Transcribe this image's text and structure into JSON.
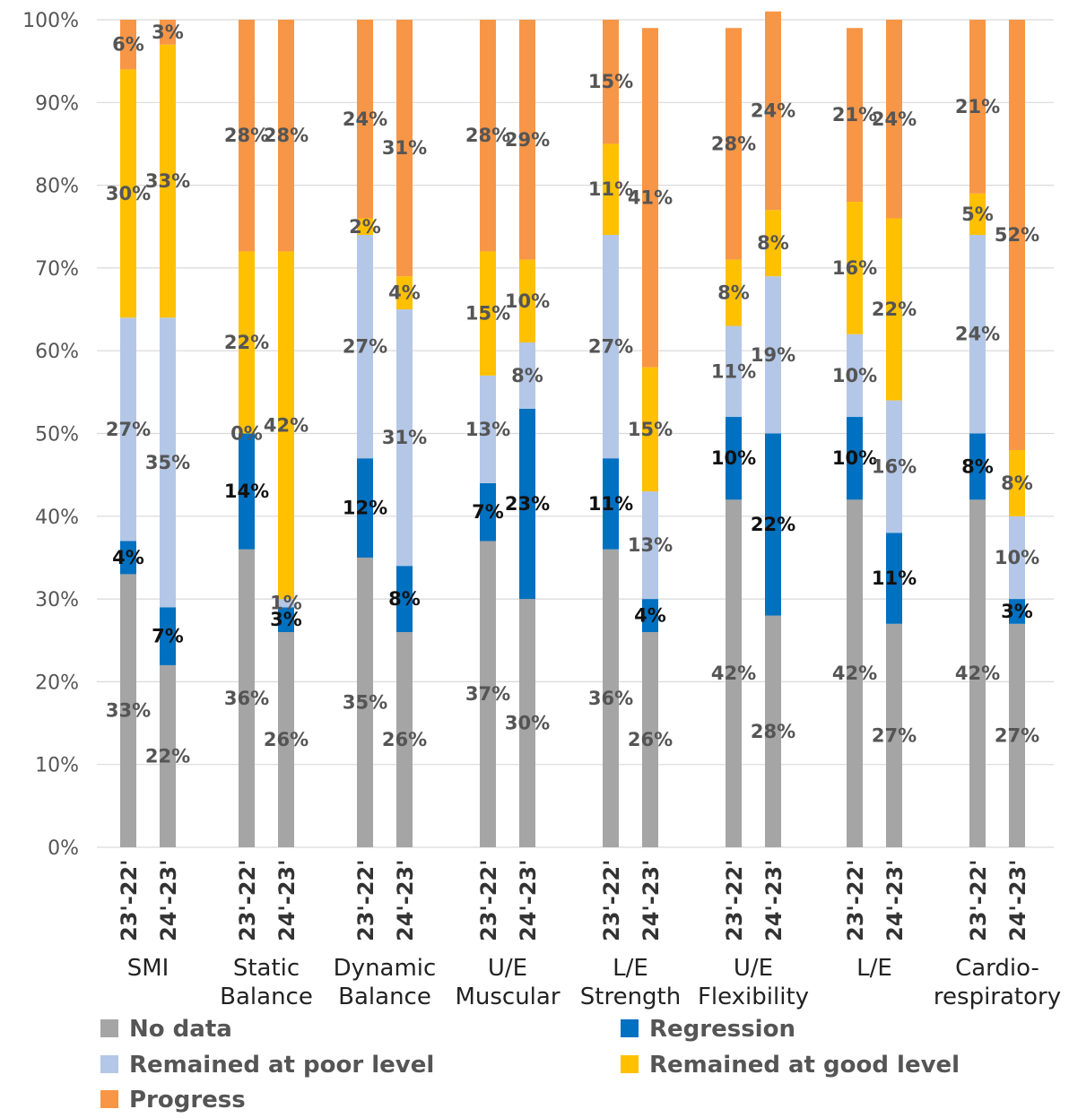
{
  "chart_data": {
    "type": "bar",
    "stacked": true,
    "ylim": [
      0,
      100
    ],
    "y_ticks": [
      "0%",
      "10%",
      "20%",
      "30%",
      "40%",
      "50%",
      "60%",
      "70%",
      "80%",
      "90%",
      "100%"
    ],
    "grid": "horizontal",
    "legend_position": "bottom",
    "groups": [
      {
        "label": [
          "SMI"
        ],
        "bars": [
          {
            "period": "23'-22'",
            "values": [
              33,
              4,
              27,
              30,
              6
            ]
          },
          {
            "period": "24'-23'",
            "values": [
              22,
              7,
              35,
              33,
              3
            ]
          }
        ]
      },
      {
        "label": [
          "Static",
          "Balance"
        ],
        "bars": [
          {
            "period": "23'-22'",
            "values": [
              36,
              14,
              0,
              22,
              28
            ]
          },
          {
            "period": "24'-23'",
            "values": [
              26,
              3,
              1,
              42,
              28
            ]
          }
        ]
      },
      {
        "label": [
          "Dynamic",
          "Balance"
        ],
        "bars": [
          {
            "period": "23'-22'",
            "values": [
              35,
              12,
              27,
              2,
              24
            ]
          },
          {
            "period": "24'-23'",
            "values": [
              26,
              8,
              31,
              4,
              31
            ]
          }
        ]
      },
      {
        "label": [
          "U/E",
          "Muscular"
        ],
        "bars": [
          {
            "period": "23'-22'",
            "values": [
              37,
              7,
              13,
              15,
              28
            ]
          },
          {
            "period": "24'-23'",
            "values": [
              30,
              23,
              8,
              10,
              29
            ]
          }
        ]
      },
      {
        "label": [
          "L/E",
          "Strength"
        ],
        "bars": [
          {
            "period": "23'-22'",
            "values": [
              36,
              11,
              27,
              11,
              15
            ]
          },
          {
            "period": "24'-23'",
            "values": [
              26,
              4,
              13,
              15,
              41
            ]
          }
        ]
      },
      {
        "label": [
          "U/E",
          "Flexibility"
        ],
        "bars": [
          {
            "period": "23'-22'",
            "values": [
              42,
              10,
              11,
              8,
              28
            ]
          },
          {
            "period": "24'-23'",
            "values": [
              28,
              22,
              19,
              8,
              24
            ]
          }
        ]
      },
      {
        "label": [
          "L/E",
          ""
        ],
        "bars": [
          {
            "period": "23'-22'",
            "values": [
              42,
              10,
              10,
              16,
              21
            ]
          },
          {
            "period": "24'-23'",
            "values": [
              27,
              11,
              16,
              22,
              24
            ]
          }
        ]
      },
      {
        "label": [
          "Cardio-",
          "respiratory"
        ],
        "bars": [
          {
            "period": "23'-22'",
            "values": [
              42,
              8,
              24,
              5,
              21
            ]
          },
          {
            "period": "24'-23'",
            "values": [
              27,
              3,
              10,
              8,
              52
            ]
          }
        ]
      }
    ],
    "series": [
      {
        "name": "No data",
        "color": "#A5A5A5",
        "label_color": "#555555"
      },
      {
        "name": "Regression",
        "color": "#0070C0",
        "label_color": "#111111"
      },
      {
        "name": "Remained at poor level",
        "color": "#B4C7E7",
        "label_color": "#555555"
      },
      {
        "name": "Remained at good level",
        "color": "#FFC000",
        "label_color": "#555555"
      },
      {
        "name": "Progress",
        "color": "#F79646",
        "label_color": "#555555"
      }
    ]
  }
}
